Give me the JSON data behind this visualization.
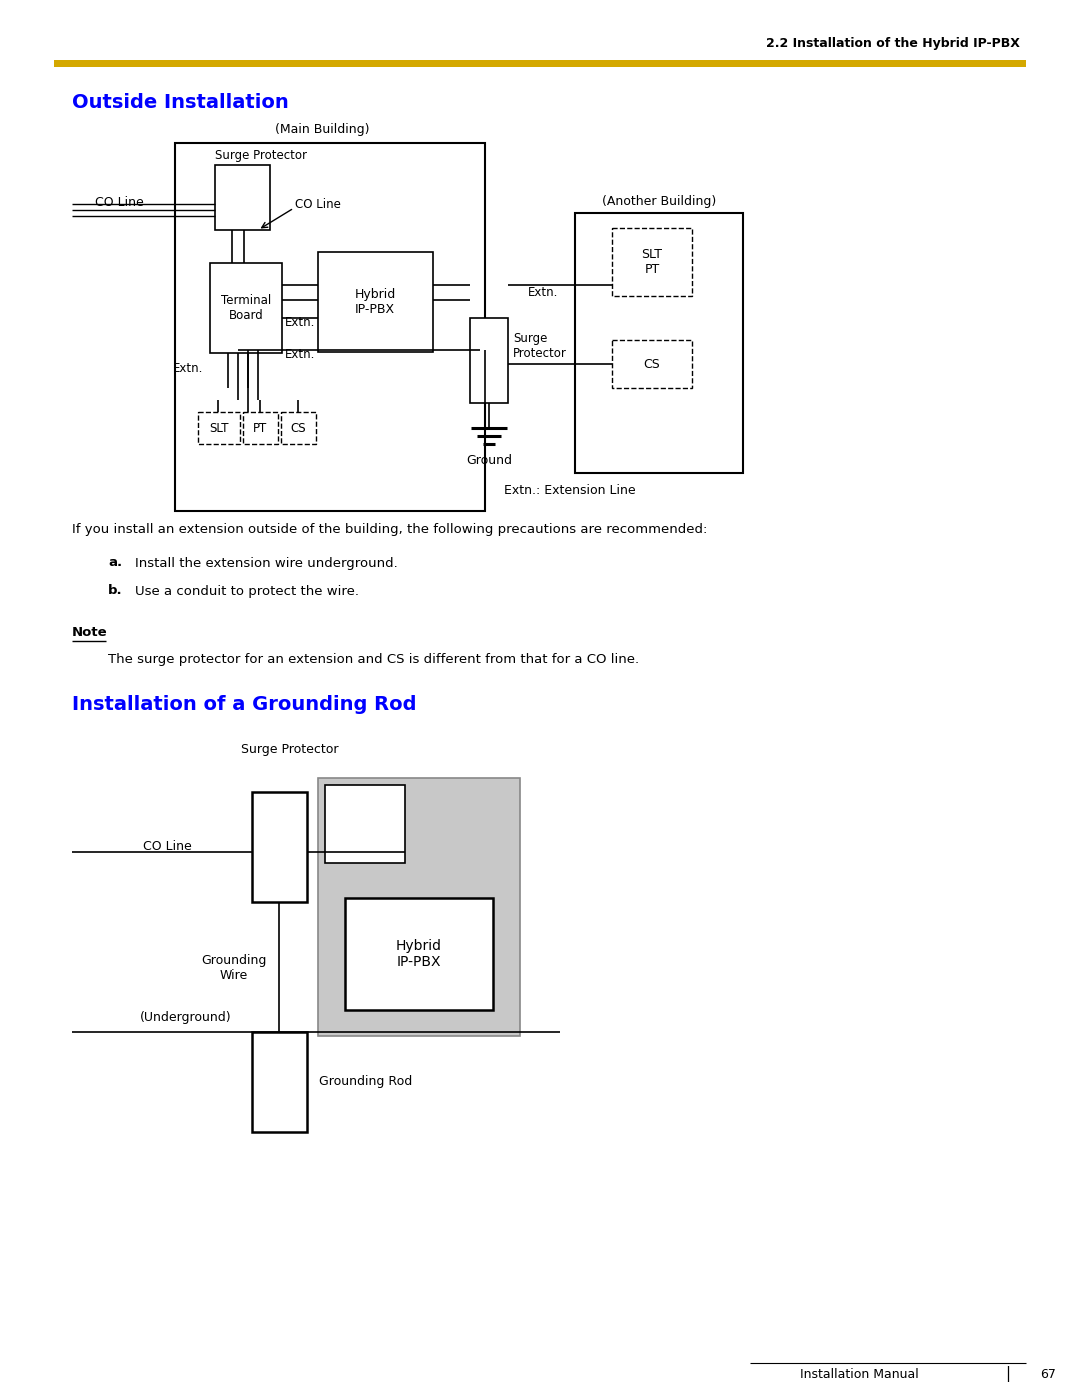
{
  "title_header": "2.2 Installation of the Hybrid IP-PBX",
  "header_line_color": "#D4A800",
  "section1_title": "Outside Installation",
  "section2_title": "Installation of a Grounding Rod",
  "section_title_color": "#0000FF",
  "text_color": "#000000",
  "bg_color": "#FFFFFF",
  "note_text": "The surge protector for an extension and CS is different from that for a CO line.",
  "body_text": "If you install an extension outside of the building, the following precautions are recommended:",
  "item_a": "Install the extension wire underground.",
  "item_b": "Use a conduit to protect the wire.",
  "footer_text": "Installation Manual",
  "footer_page": "67",
  "gray_color": "#C8C8C8"
}
